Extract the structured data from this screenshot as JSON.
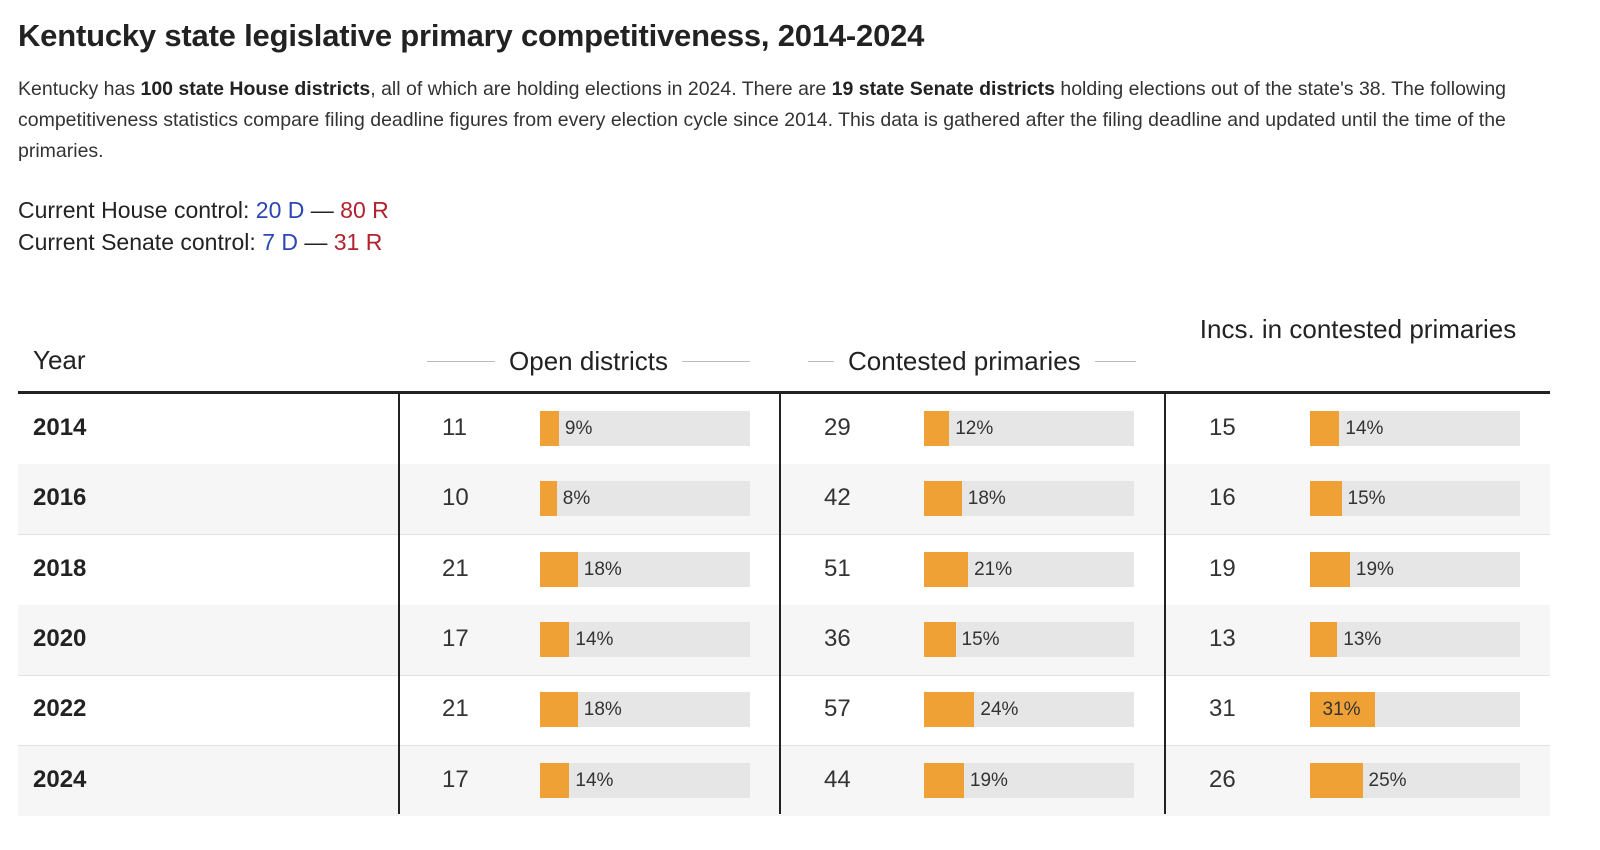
{
  "title": "Kentucky state legislative primary competitiveness, 2014-2024",
  "description": {
    "p1": "Kentucky has ",
    "b1": "100 state House districts",
    "p2": ", all of which are holding elections in 2024. There are ",
    "b2": "19 state Senate districts",
    "p3": " holding elections out of the state's 38. The following competitiveness statistics compare filing deadline figures from every election cycle since 2014. This data is gathered after the filing deadline and updated until the time of the primaries."
  },
  "house_control": {
    "label": "Current House control: ",
    "dem": "20 D",
    "sep": " — ",
    "rep": "80 R"
  },
  "senate_control": {
    "label": "Current Senate control: ",
    "dem": "7 D",
    "sep": " — ",
    "rep": "31 R"
  },
  "colors": {
    "dem": "#2a47b3",
    "rep": "#b0232e",
    "bar": "#f0a135",
    "track": "#e6e6e6"
  },
  "chart_data": {
    "type": "table",
    "columns": {
      "year": "Year",
      "open": "Open districts",
      "contested": "Contested primaries",
      "incs": "Incs. in contested primaries"
    },
    "rows": [
      {
        "year": "2014",
        "open": 11,
        "open_pct": 9,
        "contested": 29,
        "contested_pct": 12,
        "incs": 15,
        "incs_pct": 14
      },
      {
        "year": "2016",
        "open": 10,
        "open_pct": 8,
        "contested": 42,
        "contested_pct": 18,
        "incs": 16,
        "incs_pct": 15
      },
      {
        "year": "2018",
        "open": 21,
        "open_pct": 18,
        "contested": 51,
        "contested_pct": 21,
        "incs": 19,
        "incs_pct": 19
      },
      {
        "year": "2020",
        "open": 17,
        "open_pct": 14,
        "contested": 36,
        "contested_pct": 15,
        "incs": 13,
        "incs_pct": 13
      },
      {
        "year": "2022",
        "open": 21,
        "open_pct": 18,
        "contested": 57,
        "contested_pct": 24,
        "incs": 31,
        "incs_pct": 31
      },
      {
        "year": "2024",
        "open": 17,
        "open_pct": 14,
        "contested": 44,
        "contested_pct": 19,
        "incs": 26,
        "incs_pct": 25
      }
    ]
  }
}
